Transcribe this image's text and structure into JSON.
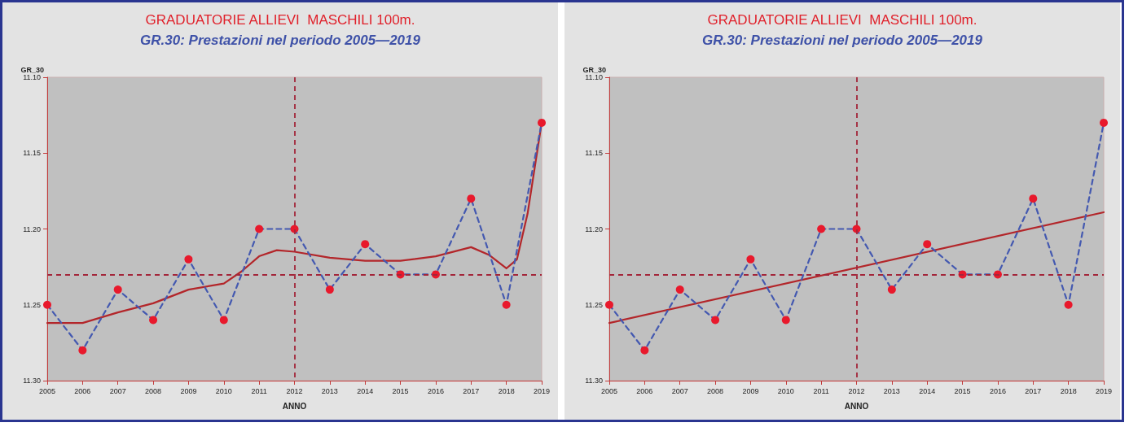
{
  "chart_data": [
    {
      "type": "line",
      "title": "GRADUATORIE ALLIEVI  MASCHILI 100m.",
      "subtitle": "GR.30: Prestazioni nel periodo 2005—2019",
      "xlabel": "ANNO",
      "ylabel": "GR_30",
      "x": [
        2005,
        2006,
        2007,
        2008,
        2009,
        2010,
        2011,
        2012,
        2013,
        2014,
        2015,
        2016,
        2017,
        2018,
        2019
      ],
      "series": [
        {
          "color": "#4459b0",
          "colors": [
            "#e8192c",
            "#e8192c",
            "#e8192c",
            "#e8192c",
            "#e8192c",
            "#e8192c",
            "#e8192c",
            "#e8192c",
            "#e8192c",
            "#e8192c",
            "#e8192c",
            "#e8192c",
            "#e8192c",
            "#e8192c",
            "#e8192c"
          ],
          "line_style": "dashed",
          "marker": "circle",
          "values": [
            11.25,
            11.28,
            11.24,
            11.26,
            11.22,
            11.26,
            11.2,
            11.2,
            11.24,
            11.21,
            11.23,
            11.23,
            11.18,
            11.25,
            11.13
          ]
        },
        {
          "type": "line",
          "color": "#b3262a",
          "line_style": "solid",
          "marker": "none",
          "x": [
            2005,
            2006,
            2007,
            2008,
            2009,
            2010,
            2010.5,
            2011,
            2011.5,
            2012,
            2013,
            2014,
            2015,
            2016,
            2017,
            2017.5,
            2018,
            2018.3,
            2018.6,
            2019
          ],
          "values": [
            11.262,
            11.262,
            11.255,
            11.249,
            11.24,
            11.236,
            11.228,
            11.218,
            11.214,
            11.215,
            11.219,
            11.221,
            11.221,
            11.218,
            11.212,
            11.217,
            11.226,
            11.22,
            11.19,
            11.13
          ]
        }
      ],
      "xlim": [
        2005,
        2019
      ],
      "xticks": [
        2005,
        2006,
        2007,
        2008,
        2009,
        2010,
        2011,
        2012,
        2013,
        2014,
        2015,
        2016,
        2017,
        2018,
        2019
      ],
      "ylim": [
        11.3,
        11.1
      ],
      "yticks": [
        {
          "value": 11.1,
          "label": "11.10"
        },
        {
          "value": 11.15,
          "label": "11.15"
        },
        {
          "value": 11.2,
          "label": "11.20"
        },
        {
          "value": 11.25,
          "label": "11.25"
        },
        {
          "value": 11.3,
          "label": "11.30"
        }
      ],
      "ref_lines": [
        {
          "axis": "y",
          "value": 11.23,
          "color": "#a3263a",
          "line_style": "dashed"
        },
        {
          "axis": "x",
          "value": 2012,
          "color": "#a3263a",
          "line_style": "dashed"
        }
      ]
    },
    {
      "type": "line",
      "title": "GRADUATORIE ALLIEVI  MASCHILI 100m.",
      "subtitle": "GR.30: Prestazioni nel periodo 2005—2019",
      "xlabel": "ANNO",
      "ylabel": "GR_30",
      "x": [
        2005,
        2006,
        2007,
        2008,
        2009,
        2010,
        2011,
        2012,
        2013,
        2014,
        2015,
        2016,
        2017,
        2018,
        2019
      ],
      "series": [
        {
          "color": "#4459b0",
          "colors": [
            "#e8192c",
            "#e8192c",
            "#e8192c",
            "#e8192c",
            "#e8192c",
            "#e8192c",
            "#e8192c",
            "#e8192c",
            "#e8192c",
            "#e8192c",
            "#e8192c",
            "#e8192c",
            "#e8192c",
            "#e8192c",
            "#e8192c"
          ],
          "line_style": "dashed",
          "marker": "circle",
          "values": [
            11.25,
            11.28,
            11.24,
            11.26,
            11.22,
            11.26,
            11.2,
            11.2,
            11.24,
            11.21,
            11.23,
            11.23,
            11.18,
            11.25,
            11.13
          ]
        },
        {
          "type": "line",
          "color": "#b3262a",
          "line_style": "solid",
          "marker": "none",
          "x": [
            2005,
            2019
          ],
          "values": [
            11.262,
            11.189
          ]
        }
      ],
      "xlim": [
        2005,
        2019
      ],
      "xticks": [
        2005,
        2006,
        2007,
        2008,
        2009,
        2010,
        2011,
        2012,
        2013,
        2014,
        2015,
        2016,
        2017,
        2018,
        2019
      ],
      "ylim": [
        11.3,
        11.1
      ],
      "yticks": [
        {
          "value": 11.1,
          "label": "11.10"
        },
        {
          "value": 11.15,
          "label": "11.15"
        },
        {
          "value": 11.2,
          "label": "11.20"
        },
        {
          "value": 11.25,
          "label": "11.25"
        },
        {
          "value": 11.3,
          "label": "11.30"
        }
      ],
      "ref_lines": [
        {
          "axis": "y",
          "value": 11.23,
          "color": "#a3263a",
          "line_style": "dashed"
        },
        {
          "axis": "x",
          "value": 2012,
          "color": "#a3263a",
          "line_style": "dashed"
        }
      ]
    }
  ]
}
